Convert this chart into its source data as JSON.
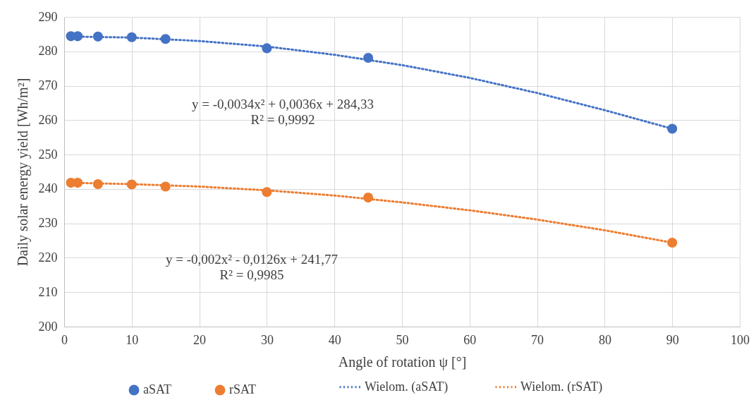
{
  "chart_data": {
    "type": "scatter",
    "xlabel": "Angle of rotation ψ [°]",
    "ylabel": "Daily solar energy yield [Wh/m²]",
    "x": [
      1,
      2,
      5,
      10,
      15,
      30,
      45,
      90
    ],
    "series": [
      {
        "name": "aSAT",
        "marker": "circle",
        "color": "#4472c4",
        "values": [
          284.4,
          284.4,
          284.3,
          284.1,
          283.6,
          280.9,
          278.1,
          257.5
        ]
      },
      {
        "name": "rSAT",
        "marker": "circle",
        "color": "#ed7d31",
        "values": [
          241.8,
          241.8,
          241.4,
          241.3,
          240.7,
          239.1,
          237.5,
          224.4
        ]
      },
      {
        "name": "Wielom. (aSAT)",
        "type": "line",
        "line_style": "dotted",
        "color": "#4472c4",
        "x": [
          1,
          10,
          20,
          30,
          40,
          50,
          60,
          70,
          80,
          90
        ],
        "values": [
          284.3,
          284.0,
          283.0,
          281.4,
          279.0,
          276.0,
          272.3,
          267.9,
          262.9,
          257.5
        ]
      },
      {
        "name": "Wielom. (rSAT)",
        "type": "line",
        "line_style": "dotted",
        "color": "#ed7d31",
        "x": [
          1,
          10,
          20,
          30,
          40,
          50,
          60,
          70,
          80,
          90
        ],
        "values": [
          241.8,
          241.4,
          240.7,
          239.6,
          238.1,
          236.1,
          233.8,
          231.1,
          228.0,
          224.4
        ]
      }
    ],
    "annotations": [
      "y = -0,0034x² + 0,0036x + 284,33",
      "R² = 0,9992",
      "y = -0,002x² - 0,0126x + 241,77",
      "R² = 0,9985"
    ],
    "xlim": [
      0,
      100
    ],
    "xticks": [
      0,
      10,
      20,
      30,
      40,
      50,
      60,
      70,
      80,
      90,
      100
    ],
    "ylim": [
      200,
      290
    ],
    "yticks": [
      200,
      210,
      220,
      230,
      240,
      250,
      260,
      270,
      280,
      290
    ],
    "grid": true,
    "legend": "bottom"
  }
}
